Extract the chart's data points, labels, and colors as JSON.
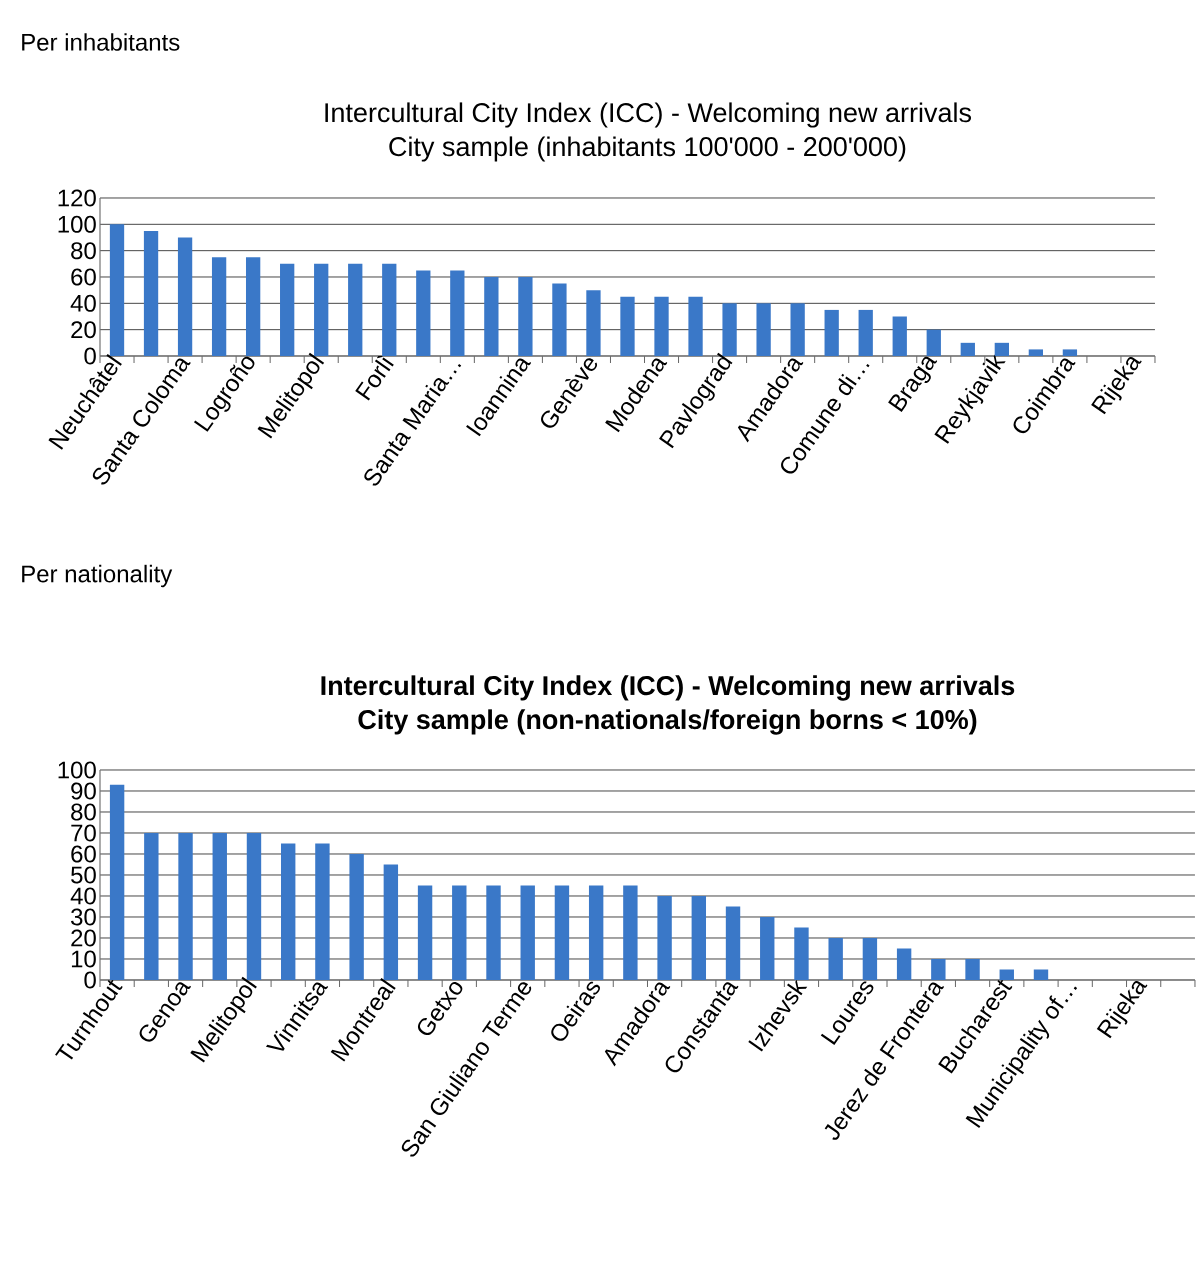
{
  "chart_data": [
    {
      "type": "bar",
      "annotations": [
        "Per inhabitants"
      ],
      "title": "Intercultural City Index (ICC) - Welcoming new arrivals",
      "subtitle": "City sample (inhabitants 100'000 - 200'000)",
      "categories": [
        "Neuchâtel",
        null,
        "Santa Coloma",
        null,
        "Logroño",
        null,
        "Melitopol",
        null,
        "Forlì",
        null,
        "Santa Maria…",
        null,
        "Ioannina",
        null,
        "Genève",
        null,
        "Modena",
        null,
        "Pavlograd",
        null,
        "Amadora",
        null,
        "Comune di…",
        null,
        "Braga",
        null,
        "Reykjavik",
        null,
        "Coimbra",
        null,
        "Rijeka"
      ],
      "values": [
        100,
        95,
        90,
        75,
        75,
        70,
        70,
        70,
        70,
        65,
        65,
        60,
        60,
        55,
        50,
        45,
        45,
        45,
        40,
        40,
        40,
        35,
        35,
        30,
        20,
        10,
        10,
        5,
        5,
        0,
        0
      ],
      "color": "#3a78c8",
      "ylim": [
        0,
        120
      ],
      "yticks": [
        0,
        20,
        40,
        60,
        80,
        100,
        120
      ],
      "grid": "y"
    },
    {
      "type": "bar",
      "annotations": [
        "Per nationality"
      ],
      "title": "Intercultural City Index (ICC) - Welcoming new arrivals",
      "subtitle": "City sample (non-nationals/foreign borns < 10%)",
      "categories": [
        "Turnhout",
        null,
        "Genoa",
        null,
        "Melitopol",
        null,
        "Vinnitsa",
        null,
        "Montreal",
        null,
        "Getxo",
        null,
        "San Giuliano Terme",
        null,
        "Oeiras",
        null,
        "Amadora",
        null,
        "Constanta",
        null,
        "Izhevsk",
        null,
        "Loures",
        null,
        "Jerez de Frontera",
        null,
        "Bucharest",
        null,
        "Municipality of…",
        null,
        "Rijeka",
        null
      ],
      "values": [
        93,
        70,
        70,
        70,
        70,
        65,
        65,
        60,
        55,
        45,
        45,
        45,
        45,
        45,
        45,
        45,
        40,
        40,
        35,
        30,
        25,
        20,
        20,
        15,
        10,
        10,
        5,
        5,
        0,
        0,
        0,
        0
      ],
      "color": "#3a78c8",
      "ylim": [
        0,
        100
      ],
      "yticks": [
        0,
        10,
        20,
        30,
        40,
        50,
        60,
        70,
        80,
        90,
        100
      ],
      "grid": "y"
    }
  ]
}
